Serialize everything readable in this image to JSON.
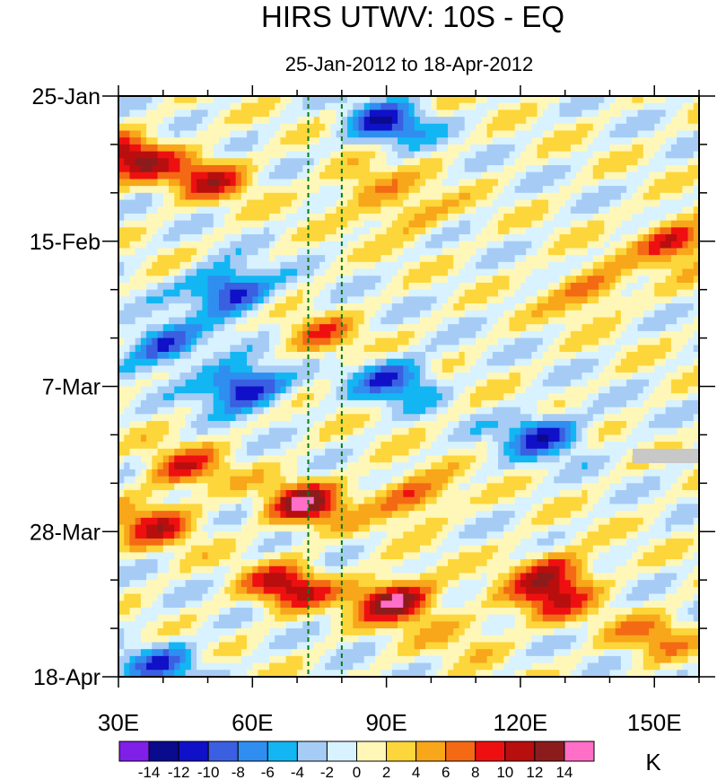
{
  "chart_data": {
    "type": "heatmap",
    "title": "HIRS UTWV: 10S - EQ",
    "subtitle": "25-Jan-2012 to 18-Apr-2012",
    "xlabel": "",
    "ylabel": "",
    "x_range": [
      30,
      160
    ],
    "x_ticks": [
      {
        "value": 30,
        "label": "30E"
      },
      {
        "value": 60,
        "label": "60E"
      },
      {
        "value": 90,
        "label": "90E"
      },
      {
        "value": 120,
        "label": "120E"
      },
      {
        "value": 150,
        "label": "150E"
      }
    ],
    "y_range_days": [
      0,
      84
    ],
    "y_ticks": [
      {
        "value": 0,
        "label": "25-Jan"
      },
      {
        "value": 21,
        "label": "15-Feb"
      },
      {
        "value": 42,
        "label": "7-Mar"
      },
      {
        "value": 63,
        "label": "28-Mar"
      },
      {
        "value": 84,
        "label": "18-Apr"
      }
    ],
    "reference_lines_lon": [
      72.5,
      80
    ],
    "units": "K",
    "colorbar": {
      "labels": [
        "-14",
        "-12",
        "-10",
        "-8",
        "-6",
        "-4",
        "-2",
        "0",
        "2",
        "4",
        "6",
        "8",
        "10",
        "12",
        "14"
      ],
      "levels": [
        -14,
        -12,
        -10,
        -8,
        -6,
        -4,
        -2,
        0,
        2,
        4,
        6,
        8,
        10,
        12,
        14
      ],
      "colors": [
        "#7f1fe8",
        "#0a0a8c",
        "#1010c8",
        "#3a5fe0",
        "#2f8ef0",
        "#12b6f2",
        "#a6ccf5",
        "#d8f2ff",
        "#fff7b8",
        "#fcd63a",
        "#f8a61a",
        "#f46a14",
        "#ee1010",
        "#b80e0e",
        "#8c1c1c",
        "#ff6fc8"
      ]
    },
    "anomaly_features": [
      {
        "lon": 33,
        "day": 9,
        "value": 12,
        "desc": "warm early west"
      },
      {
        "lon": 50,
        "day": 12,
        "value": 9
      },
      {
        "lon": 85,
        "day": 13,
        "value": 5
      },
      {
        "lon": 95,
        "day": 17,
        "value": 5
      },
      {
        "lon": 155,
        "day": 21,
        "value": 10
      },
      {
        "lon": 135,
        "day": 28,
        "value": 7
      },
      {
        "lon": 90,
        "day": 4,
        "value": -10
      },
      {
        "lon": 55,
        "day": 28,
        "value": -12
      },
      {
        "lon": 40,
        "day": 36,
        "value": -10
      },
      {
        "lon": 58,
        "day": 42,
        "value": -13
      },
      {
        "lon": 92,
        "day": 41,
        "value": -9
      },
      {
        "lon": 125,
        "day": 49,
        "value": -10
      },
      {
        "lon": 75,
        "day": 35,
        "value": 6
      },
      {
        "lon": 72,
        "day": 59,
        "value": 12
      },
      {
        "lon": 45,
        "day": 54,
        "value": 8
      },
      {
        "lon": 38,
        "day": 62,
        "value": 9
      },
      {
        "lon": 96,
        "day": 58,
        "value": 8
      },
      {
        "lon": 68,
        "day": 71,
        "value": 11
      },
      {
        "lon": 92,
        "day": 73,
        "value": 14
      },
      {
        "lon": 128,
        "day": 69,
        "value": 9
      },
      {
        "lon": 126,
        "day": 73,
        "value": 8
      },
      {
        "lon": 40,
        "day": 82,
        "value": -8
      },
      {
        "lon": 150,
        "day": 78,
        "value": 6
      },
      {
        "lon": 108,
        "day": 78,
        "value": 3
      }
    ]
  }
}
